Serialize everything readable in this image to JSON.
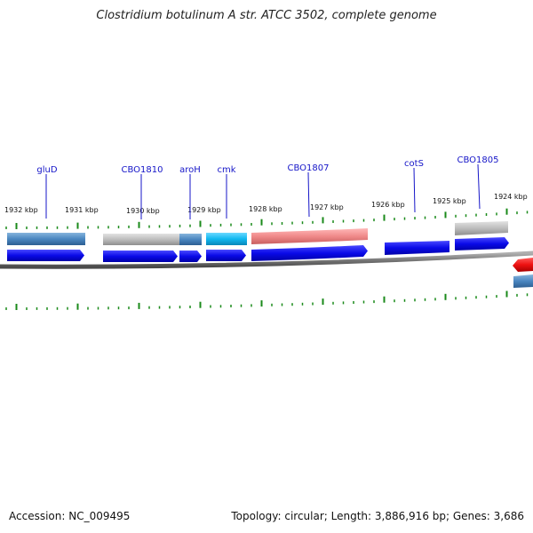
{
  "title": "Clostridium botulinum A str. ATCC 3502, complete genome",
  "footer": {
    "accession": "Accession: NC_009495",
    "topology": "Topology: circular; Length: 3,886,916 bp; Genes: 3,686"
  },
  "scale_labels": [
    "1932 kbp",
    "1931 kbp",
    "1930 kbp",
    "1929 kbp",
    "1928 kbp",
    "1927 kbp",
    "1926 kbp",
    "1925 kbp",
    "1924 kbp"
  ],
  "gene_labels": [
    "gluD",
    "CBO1810",
    "aroH",
    "cmk",
    "CBO1807",
    "cotS",
    "CBO1805"
  ],
  "colors": {
    "label": "#1515c8",
    "tick": "#1a8a1a",
    "backbone": "#7a7a7a",
    "cds": "#1010e0",
    "gene_steelblue": "#4a86c0",
    "gene_gray": "#b8b8b8",
    "gene_cyan": "#10b8f0",
    "gene_pink": "#f08a8a",
    "gene_red": "#ee1111"
  }
}
